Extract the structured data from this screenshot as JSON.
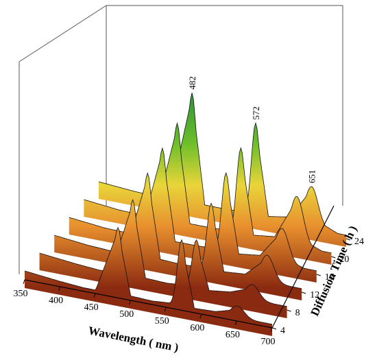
{
  "chart_data": {
    "type": "area",
    "xlabel": "Wavelength ( nm )",
    "zlabel": "Diffusion Time ( h )",
    "x_ticks": [
      "350",
      "400",
      "450",
      "500",
      "550",
      "600",
      "650",
      "700"
    ],
    "z_ticks": [
      "4",
      "8",
      "12",
      "16",
      "20",
      "24"
    ],
    "xlim": [
      350,
      700
    ],
    "zlim": [
      4,
      24
    ],
    "grid": false,
    "peak_labels": [
      {
        "text": "482",
        "x": 482
      },
      {
        "text": "572",
        "x": 572
      },
      {
        "text": "651",
        "x": 651
      }
    ],
    "series": [
      {
        "time": 4,
        "points": [
          [
            350,
            0.1
          ],
          [
            400,
            0.06
          ],
          [
            450,
            0.03
          ],
          [
            482,
            0.75
          ],
          [
            500,
            0.05
          ],
          [
            530,
            0.04
          ],
          [
            560,
            0.06
          ],
          [
            572,
            0.75
          ],
          [
            590,
            0.05
          ],
          [
            620,
            0.06
          ],
          [
            651,
            0.13
          ],
          [
            670,
            0.03
          ],
          [
            700,
            0.0
          ]
        ]
      },
      {
        "time": 8,
        "points": [
          [
            350,
            0.1
          ],
          [
            400,
            0.06
          ],
          [
            450,
            0.03
          ],
          [
            482,
            0.86
          ],
          [
            500,
            0.05
          ],
          [
            530,
            0.04
          ],
          [
            560,
            0.06
          ],
          [
            572,
            0.55
          ],
          [
            590,
            0.05
          ],
          [
            620,
            0.08
          ],
          [
            651,
            0.17
          ],
          [
            670,
            0.04
          ],
          [
            700,
            0.0
          ]
        ]
      },
      {
        "time": 12,
        "points": [
          [
            350,
            0.1
          ],
          [
            400,
            0.06
          ],
          [
            450,
            0.04
          ],
          [
            482,
            0.96
          ],
          [
            500,
            0.06
          ],
          [
            530,
            0.05
          ],
          [
            560,
            0.06
          ],
          [
            572,
            0.76
          ],
          [
            590,
            0.06
          ],
          [
            620,
            0.08
          ],
          [
            651,
            0.3
          ],
          [
            670,
            0.06
          ],
          [
            700,
            0.0
          ]
        ]
      },
      {
        "time": 16,
        "points": [
          [
            350,
            0.1
          ],
          [
            400,
            0.06
          ],
          [
            450,
            0.05
          ],
          [
            482,
            1.04
          ],
          [
            500,
            0.06
          ],
          [
            530,
            0.06
          ],
          [
            560,
            0.07
          ],
          [
            572,
            0.9
          ],
          [
            590,
            0.06
          ],
          [
            620,
            0.09
          ],
          [
            651,
            0.4
          ],
          [
            670,
            0.07
          ],
          [
            700,
            0.0
          ]
        ]
      },
      {
        "time": 20,
        "points": [
          [
            350,
            0.1
          ],
          [
            400,
            0.06
          ],
          [
            450,
            0.05
          ],
          [
            482,
            1.12
          ],
          [
            500,
            0.06
          ],
          [
            530,
            0.06
          ],
          [
            560,
            0.07
          ],
          [
            572,
            0.98
          ],
          [
            590,
            0.07
          ],
          [
            620,
            0.1
          ],
          [
            651,
            0.56
          ],
          [
            670,
            0.09
          ],
          [
            700,
            0.0
          ]
        ]
      },
      {
        "time": 24,
        "points": [
          [
            350,
            0.1
          ],
          [
            400,
            0.07
          ],
          [
            450,
            0.05
          ],
          [
            482,
            1.26
          ],
          [
            500,
            0.07
          ],
          [
            530,
            0.07
          ],
          [
            560,
            0.08
          ],
          [
            572,
            1.06
          ],
          [
            590,
            0.08
          ],
          [
            620,
            0.12
          ],
          [
            651,
            0.47
          ],
          [
            670,
            0.1
          ],
          [
            700,
            0.0
          ]
        ]
      }
    ]
  }
}
